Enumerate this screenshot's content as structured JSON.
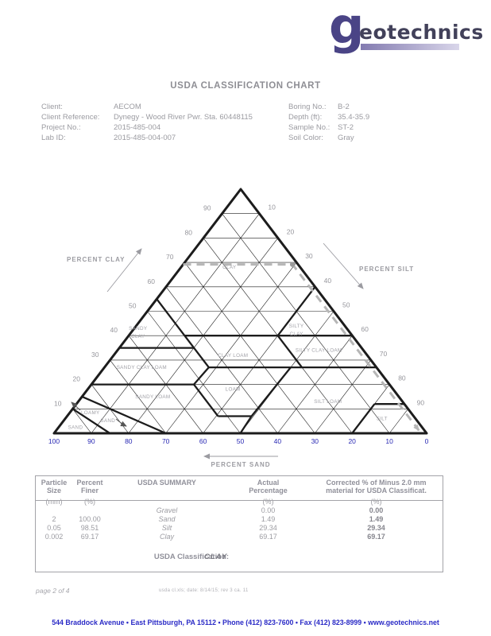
{
  "logo": {
    "g": "g",
    "rest": "eotechnics"
  },
  "header": {
    "title": "USDA CLASSIFICATION CHART"
  },
  "info": {
    "left": [
      {
        "label": "Client:",
        "value": "AECOM"
      },
      {
        "label": "Client Reference:",
        "value": "Dynegy - Wood River Pwr. Sta. 60448115"
      },
      {
        "label": "Project No.:",
        "value": "2015-485-004"
      },
      {
        "label": "Lab ID:",
        "value": "2015-485-004-007"
      }
    ],
    "right": [
      {
        "label": "Boring No.:",
        "value": "B-2"
      },
      {
        "label": "Depth (ft):",
        "value": "35.4-35.9"
      },
      {
        "label": "Sample No.:",
        "value": "ST-2"
      },
      {
        "label": "Soil Color:",
        "value": "Gray"
      }
    ]
  },
  "chart_data": {
    "type": "ternary",
    "axis_labels": {
      "clay": "PERCENT CLAY",
      "silt": "PERCENT SILT",
      "sand": "PERCENT SAND"
    },
    "clay_ticks": [
      90,
      80,
      70,
      60,
      50,
      40,
      30,
      20,
      10
    ],
    "silt_ticks": [
      10,
      20,
      30,
      40,
      50,
      60,
      70,
      80,
      90
    ],
    "sand_ticks": [
      100,
      90,
      80,
      70,
      60,
      50,
      40,
      30,
      20,
      10,
      0
    ],
    "grid_step": 10,
    "regions": [
      {
        "name": "CLAY",
        "lines": [
          "CLAY"
        ],
        "clay": 68,
        "sand": 19
      },
      {
        "name": "SILTY CLAY",
        "lines": [
          "SILTY",
          "CLAY"
        ],
        "clay": 44,
        "sand": 13
      },
      {
        "name": "SANDY CLAY",
        "lines": [
          "SANDY",
          "CLAY"
        ],
        "clay": 43,
        "sand": 56
      },
      {
        "name": "SILTY CLAY LOAM",
        "lines": [
          "SILTY CLAY LOAM"
        ],
        "clay": 34,
        "sand": 12
      },
      {
        "name": "CLAY LOAM",
        "lines": [
          "CLAY LOAM"
        ],
        "clay": 32,
        "sand": 36
      },
      {
        "name": "SANDY CLAY LOAM",
        "lines": [
          "SANDY CLAY LOAM"
        ],
        "clay": 27,
        "sand": 63
      },
      {
        "name": "LOAM",
        "lines": [
          "LOAM"
        ],
        "clay": 18,
        "sand": 43
      },
      {
        "name": "SILT LOAM",
        "lines": [
          "SILT LOAM"
        ],
        "clay": 13,
        "sand": 20
      },
      {
        "name": "SANDY LOAM",
        "lines": [
          "SANDY LOAM"
        ],
        "clay": 15,
        "sand": 66
      },
      {
        "name": "SILT",
        "lines": [
          "SILT"
        ],
        "clay": 6,
        "sand": 9
      },
      {
        "name": "SAND",
        "lines": [
          "SAND"
        ],
        "clay": 2.5,
        "sand": 93
      },
      {
        "name": "LOAMY SAND",
        "lines": [
          "LOAMY",
          "SAND"
        ],
        "clay": 8.5,
        "sand": 86,
        "stagger": 22
      }
    ],
    "boundaries": [
      [
        [
          40,
          0
        ],
        [
          40,
          45
        ]
      ],
      [
        [
          35,
          45
        ],
        [
          35,
          65
        ]
      ],
      [
        [
          55,
          45
        ],
        [
          27,
          45
        ]
      ],
      [
        [
          40,
          20
        ],
        [
          27,
          20
        ]
      ],
      [
        [
          60,
          0
        ],
        [
          40,
          20
        ]
      ],
      [
        [
          27,
          0
        ],
        [
          27,
          45
        ]
      ],
      [
        [
          27,
          45
        ],
        [
          20,
          52.5
        ]
      ],
      [
        [
          20,
          52.5
        ],
        [
          20,
          80
        ]
      ],
      [
        [
          20,
          52.5
        ],
        [
          7,
          52.5
        ]
      ],
      [
        [
          7,
          43.5
        ],
        [
          7,
          52.5
        ]
      ],
      [
        [
          27,
          23
        ],
        [
          7,
          43.5
        ]
      ],
      [
        [
          7,
          43.5
        ],
        [
          0,
          50
        ]
      ],
      [
        [
          12,
          0
        ],
        [
          12,
          8
        ]
      ],
      [
        [
          12,
          8
        ],
        [
          0,
          20
        ]
      ],
      [
        [
          15,
          85
        ],
        [
          0,
          70
        ]
      ],
      [
        [
          10,
          90
        ],
        [
          0,
          85
        ]
      ]
    ],
    "sample": {
      "gravel": 0.0,
      "sand": 1.49,
      "silt": 29.34,
      "clay": 69.17,
      "classification": "CLAY"
    },
    "colors": {
      "line": "#1c1c1c",
      "tick_gray": "#96969c",
      "tick_blue": "#2929b4",
      "region_label": "#a2a2a8",
      "axis_label": "#9b9ba1",
      "sample_dash": "#b6b6b6",
      "sample_dot": "#9a9a9a"
    }
  },
  "table": {
    "headers": {
      "c1": [
        "Particle",
        "Size",
        "(mm)"
      ],
      "c2": [
        "Percent",
        "Finer",
        "(%)"
      ],
      "c3": [
        "USDA SUMMARY",
        "",
        ""
      ],
      "c4": [
        "Actual",
        "Percentage",
        "(%)"
      ],
      "c5": [
        "Corrected % of Minus 2.0 mm",
        "material for USDA Classificat.",
        "(%)"
      ]
    },
    "rows": [
      {
        "size": "",
        "finer": "",
        "name": "Gravel",
        "actual": "0.00",
        "corrected": "0.00"
      },
      {
        "size": "2",
        "finer": "100.00",
        "name": "Sand",
        "actual": "1.49",
        "corrected": "1.49"
      },
      {
        "size": "0.05",
        "finer": "98.51",
        "name": "Silt",
        "actual": "29.34",
        "corrected": "29.34"
      },
      {
        "size": "0.002",
        "finer": "69.17",
        "name": "Clay",
        "actual": "69.17",
        "corrected": "69.17"
      }
    ],
    "classification_label": "USDA Classification:",
    "classification_value": "CLAY"
  },
  "footer": {
    "page": "page 2 of 4",
    "note": "usda cl.xls; date: 8/14/15; rev 3 ca. 11",
    "address": "544 Braddock Avenue  •  East Pittsburgh, PA 15112  •  Phone (412) 823-7600  •  Fax (412) 823-8999  •  www.geotechnics.net"
  }
}
